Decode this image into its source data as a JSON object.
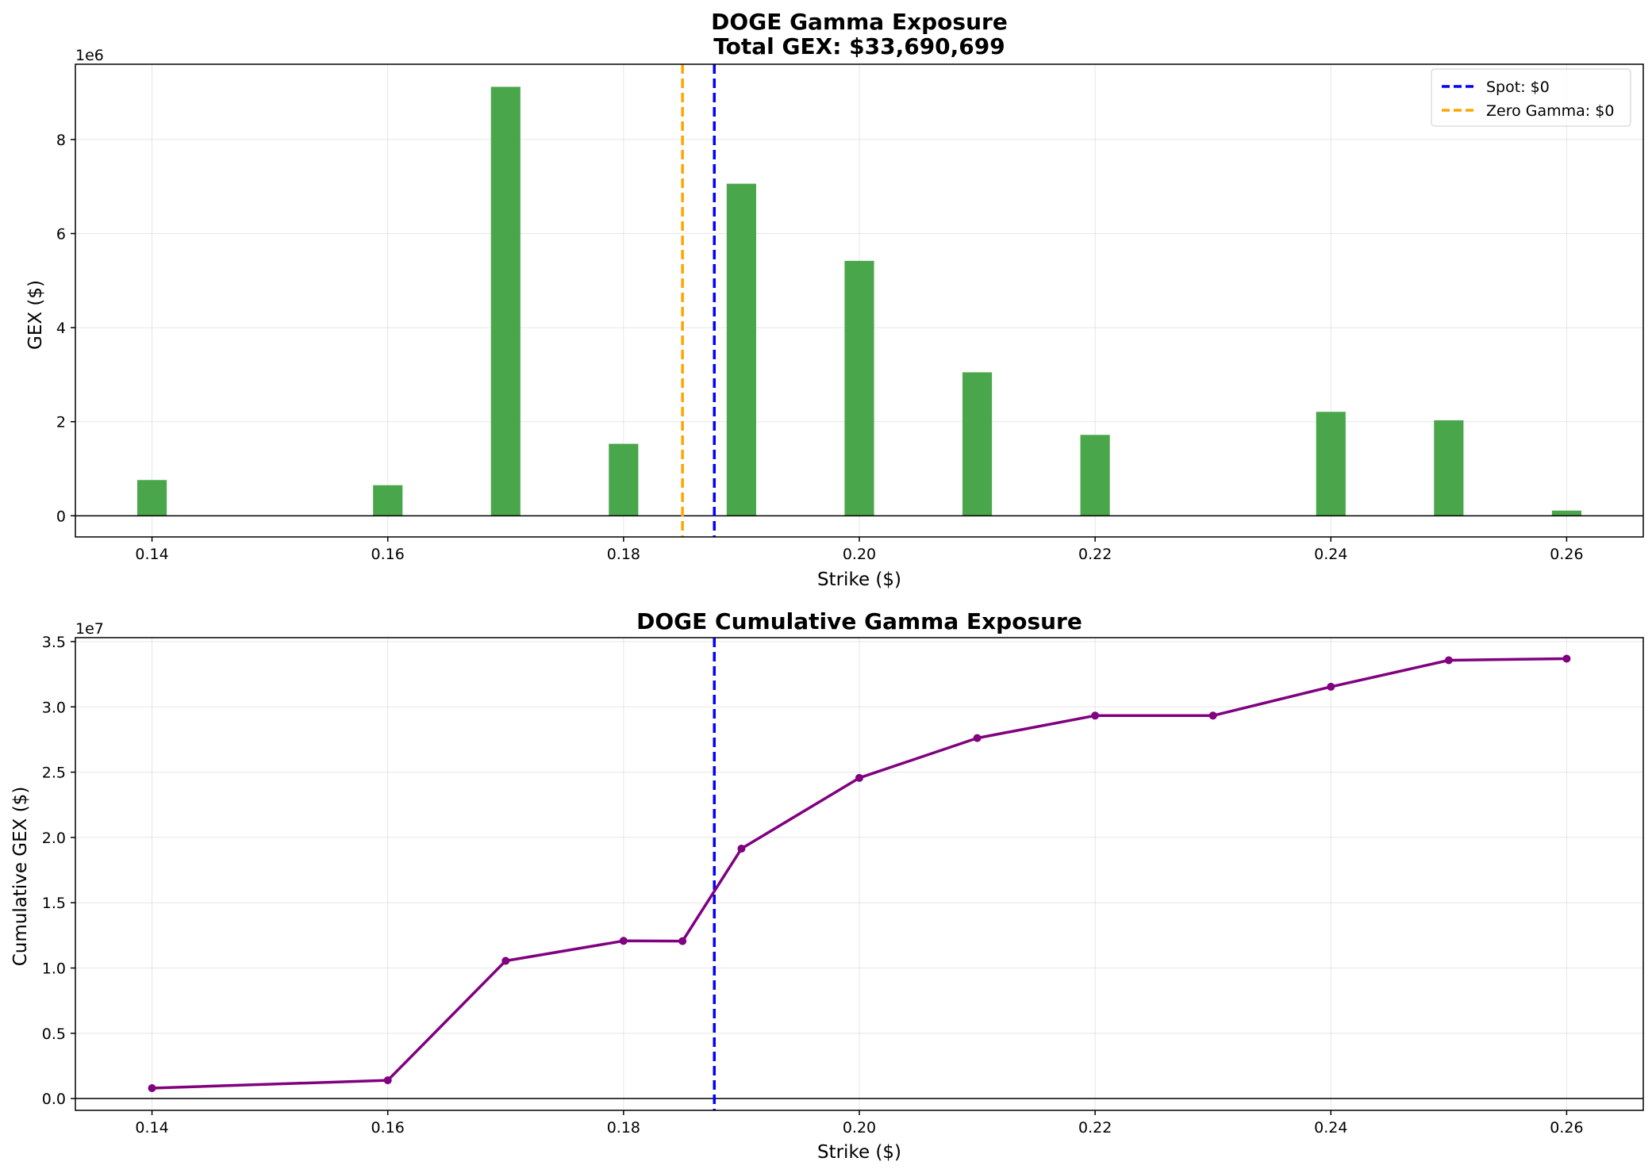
{
  "chart_data": [
    {
      "type": "bar",
      "title": "DOGE Gamma Exposure",
      "subtitle": "Total GEX: $33,690,699",
      "xlabel": "Strike ($)",
      "ylabel": "GEX ($)",
      "y_offset_label": "1e6",
      "xlim": [
        0.1335,
        0.2665
      ],
      "ylim": [
        -0.45,
        9.6
      ],
      "y_scale_note": "values in units of 1e6",
      "x_ticks": [
        0.14,
        0.16,
        0.18,
        0.2,
        0.22,
        0.24,
        0.26
      ],
      "x_tick_labels": [
        "0.14",
        "0.16",
        "0.18",
        "0.20",
        "0.22",
        "0.24",
        "0.26"
      ],
      "y_ticks": [
        0,
        2,
        4,
        6,
        8
      ],
      "y_tick_labels": [
        "0",
        "2",
        "4",
        "6",
        "8"
      ],
      "grid": true,
      "bar_color": "#4aa64a",
      "x": [
        0.14,
        0.16,
        0.17,
        0.18,
        0.19,
        0.2,
        0.21,
        0.22,
        0.24,
        0.25,
        0.26
      ],
      "values": [
        0.76,
        0.65,
        9.12,
        1.53,
        7.06,
        5.42,
        3.05,
        1.72,
        2.21,
        2.03,
        0.11
      ],
      "vlines": [
        {
          "name": "Spot: $0",
          "x": 0.1877,
          "color": "#0000ff"
        },
        {
          "name": "Zero Gamma: $0",
          "x": 0.185,
          "color": "#ffa500"
        }
      ],
      "legend_position": "upper right"
    },
    {
      "type": "line",
      "title": "DOGE Cumulative Gamma Exposure",
      "xlabel": "Strike ($)",
      "ylabel": "Cumulative GEX ($)",
      "y_offset_label": "1e7",
      "xlim": [
        0.1335,
        0.2665
      ],
      "ylim": [
        -0.09,
        3.53
      ],
      "y_scale_note": "values in units of 1e7",
      "x_ticks": [
        0.14,
        0.16,
        0.18,
        0.2,
        0.22,
        0.24,
        0.26
      ],
      "x_tick_labels": [
        "0.14",
        "0.16",
        "0.18",
        "0.20",
        "0.22",
        "0.24",
        "0.26"
      ],
      "y_ticks": [
        0.0,
        0.5,
        1.0,
        1.5,
        2.0,
        2.5,
        3.0,
        3.5
      ],
      "y_tick_labels": [
        "0.0",
        "0.5",
        "1.0",
        "1.5",
        "2.0",
        "2.5",
        "3.0",
        "3.5"
      ],
      "grid": true,
      "line_color": "#800080",
      "x": [
        0.14,
        0.16,
        0.17,
        0.18,
        0.185,
        0.19,
        0.2,
        0.21,
        0.22,
        0.23,
        0.24,
        0.25,
        0.26
      ],
      "values": [
        0.08,
        0.14,
        1.055,
        1.208,
        1.206,
        1.914,
        2.456,
        2.761,
        2.933,
        2.933,
        3.154,
        3.357,
        3.369
      ],
      "vlines": [
        {
          "x": 0.1877,
          "color": "#0000ff"
        }
      ]
    }
  ]
}
